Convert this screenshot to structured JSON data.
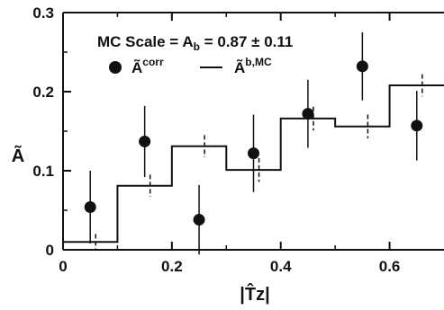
{
  "chart_data": {
    "type": "scatter",
    "xlabel": "|T̂z|",
    "ylabel": "Ã",
    "xlim": [
      0,
      0.7
    ],
    "ylim": [
      0,
      0.3
    ],
    "xticks": [
      "0",
      "0.2",
      "0.4",
      "0.6"
    ],
    "yticks": [
      "0",
      "0.1",
      "0.2",
      "0.3"
    ],
    "annotation": "MC Scale = A",
    "annotation_sub": "b",
    "annotation_rest": " = 0.87 ± 0.11",
    "legend": {
      "points_label": "Ã",
      "points_sup": "corr",
      "hist_label": "Ã",
      "hist_sup": "b,MC",
      "placement": "top-left"
    },
    "series": [
      {
        "name": "Ã^corr",
        "kind": "points",
        "x": [
          0.05,
          0.15,
          0.25,
          0.35,
          0.45,
          0.55,
          0.65
        ],
        "y": [
          0.054,
          0.137,
          0.038,
          0.122,
          0.172,
          0.232,
          0.157
        ],
        "err": [
          0.046,
          0.045,
          0.044,
          0.049,
          0.043,
          0.043,
          0.044
        ]
      },
      {
        "name": "Ã^b,MC",
        "kind": "histogram",
        "edges": [
          0,
          0.1,
          0.2,
          0.3,
          0.4,
          0.5,
          0.6,
          0.7
        ],
        "y": [
          0.01,
          0.081,
          0.131,
          0.101,
          0.166,
          0.156,
          0.208
        ],
        "err": [
          0.01,
          0.014,
          0.014,
          0.015,
          0.015,
          0.015,
          0.014
        ]
      }
    ]
  }
}
